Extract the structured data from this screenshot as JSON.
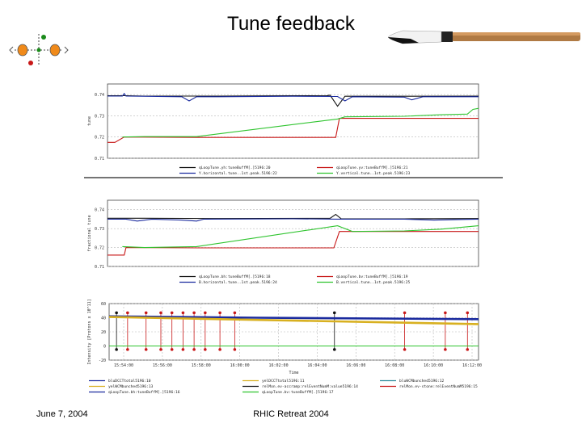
{
  "slide": {
    "title": "Tune feedback",
    "footer_left": "June 7, 2004",
    "footer_center": "RHIC Retreat 2004"
  },
  "colors": {
    "black": "#111111",
    "blue": "#1a2a9e",
    "red": "#c81818",
    "green": "#2fc42f",
    "yellow": "#d8b020",
    "teal": "#2a8a9a",
    "grid": "#b8b8b8"
  },
  "chart_data": [
    {
      "type": "line",
      "ylabel": "tune",
      "yticks": [
        "0.74",
        "0.73",
        "0.72",
        "0.71"
      ],
      "ylim": [
        0.71,
        0.745
      ],
      "legend": [
        "qLoopTune.yh:tuneBuffM[.]5196:20",
        "qLoopTune.yv:tuneBuffM[.]5196:21",
        "Y.horizontal.tune..1st.peak.5196:22",
        "Y.vertical.tune..1st.peak.5196:23"
      ],
      "series": [
        {
          "name": "qLoopTune.yh:tuneBuffM[.]5196:20",
          "color": "black",
          "points": [
            [
              0,
              0.7395
            ],
            [
              0.05,
              0.7395
            ],
            [
              0.1,
              0.7393
            ],
            [
              0.3,
              0.7393
            ],
            [
              0.5,
              0.7395
            ],
            [
              0.59,
              0.7394
            ],
            [
              0.6,
              0.7397
            ],
            [
              0.62,
              0.7345
            ],
            [
              0.64,
              0.7392
            ],
            [
              0.8,
              0.7392
            ],
            [
              1,
              0.7393
            ]
          ]
        },
        {
          "name": "Y.horizontal.tune..1st.peak.5196:22",
          "color": "blue",
          "points": [
            [
              0,
              0.7393
            ],
            [
              0.04,
              0.7393
            ],
            [
              0.045,
              0.7405
            ],
            [
              0.05,
              0.7393
            ],
            [
              0.2,
              0.739
            ],
            [
              0.22,
              0.737
            ],
            [
              0.24,
              0.739
            ],
            [
              0.3,
              0.739
            ],
            [
              0.5,
              0.7392
            ],
            [
              0.62,
              0.7391
            ],
            [
              0.64,
              0.737
            ],
            [
              0.66,
              0.739
            ],
            [
              0.8,
              0.7388
            ],
            [
              0.82,
              0.7375
            ],
            [
              0.85,
              0.739
            ],
            [
              1,
              0.739
            ]
          ]
        },
        {
          "name": "qLoopTune.yv:tuneBuffM[.]5196:21",
          "color": "red",
          "points": [
            [
              0,
              0.7175
            ],
            [
              0.02,
              0.7175
            ],
            [
              0.045,
              0.72
            ],
            [
              0.25,
              0.7198
            ],
            [
              0.6,
              0.7198
            ],
            [
              0.615,
              0.7198
            ],
            [
              0.625,
              0.7288
            ],
            [
              1,
              0.7288
            ]
          ]
        },
        {
          "name": "Y.vertical.tune..1st.peak.5196:23",
          "color": "green",
          "points": [
            [
              0.04,
              0.72
            ],
            [
              0.1,
              0.7202
            ],
            [
              0.24,
              0.7202
            ],
            [
              0.62,
              0.7285
            ],
            [
              0.64,
              0.7295
            ],
            [
              0.8,
              0.7298
            ],
            [
              0.9,
              0.7305
            ],
            [
              0.97,
              0.7308
            ],
            [
              0.985,
              0.733
            ],
            [
              1,
              0.7335
            ]
          ]
        }
      ]
    },
    {
      "type": "line",
      "ylabel": "fractional tune",
      "yticks": [
        "0.74",
        "0.73",
        "0.72",
        "0.71"
      ],
      "ylim": [
        0.71,
        0.745
      ],
      "legend": [
        "qLoopTune.bh:tuneBuffM[.]5196:18",
        "qLoopTune.bv:tuneBuffM[.]5196:19",
        "B.horizontal.tune..1st.peak.5196:24",
        "B.vertical.tune..1st.peak.5196:25"
      ],
      "series": [
        {
          "name": "qLoopTune.bh:tuneBuffM[.]5196:18",
          "color": "black",
          "points": [
            [
              0,
              0.7355
            ],
            [
              0.1,
              0.7355
            ],
            [
              0.3,
              0.7353
            ],
            [
              0.6,
              0.7355
            ],
            [
              0.615,
              0.7375
            ],
            [
              0.63,
              0.7352
            ],
            [
              0.8,
              0.7352
            ],
            [
              1,
              0.7353
            ]
          ]
        },
        {
          "name": "B.horizontal.tune..1st.peak.5196:24",
          "color": "blue",
          "points": [
            [
              0,
              0.735
            ],
            [
              0.05,
              0.735
            ],
            [
              0.08,
              0.734
            ],
            [
              0.12,
              0.735
            ],
            [
              0.2,
              0.7345
            ],
            [
              0.24,
              0.734
            ],
            [
              0.26,
              0.735
            ],
            [
              0.5,
              0.7352
            ],
            [
              0.62,
              0.735
            ],
            [
              0.65,
              0.735
            ],
            [
              0.8,
              0.735
            ],
            [
              0.88,
              0.7345
            ],
            [
              1,
              0.735
            ]
          ]
        },
        {
          "name": "qLoopTune.bv:tuneBuffM[.]5196:19",
          "color": "red",
          "points": [
            [
              0,
              0.716
            ],
            [
              0.045,
              0.716
            ],
            [
              0.05,
              0.72
            ],
            [
              0.25,
              0.7198
            ],
            [
              0.61,
              0.7198
            ],
            [
              0.625,
              0.7285
            ],
            [
              1,
              0.7285
            ]
          ]
        },
        {
          "name": "B.vertical.tune..1st.peak.5196:25",
          "color": "green",
          "points": [
            [
              0.04,
              0.7205
            ],
            [
              0.1,
              0.72
            ],
            [
              0.24,
              0.7205
            ],
            [
              0.62,
              0.7315
            ],
            [
              0.66,
              0.7285
            ],
            [
              0.8,
              0.7288
            ],
            [
              0.9,
              0.7297
            ],
            [
              1,
              0.7315
            ]
          ]
        }
      ]
    },
    {
      "type": "line",
      "ylabel": "Intensity [Protons x 10^11]",
      "xlabel": "Time",
      "yticks": [
        "60",
        "40",
        "20",
        "0",
        "-20"
      ],
      "ylim": [
        -20,
        60
      ],
      "xticks": [
        "15:54:00",
        "15:56:00",
        "15:58:00",
        "16:00:00",
        "16:02:00",
        "16:04:00",
        "16:06:00",
        "16:08:00",
        "16:10:00",
        "16:12:00"
      ],
      "legend": [
        "bluDCCTtotal5196:10",
        "yelDCCTtotal5196:11",
        "bluWCMbunched5196:12",
        "yelWCMbunched5196:13",
        "relMon.ev-accramp:relEventNumM:value5196:14",
        "relMon.ev-stone:relEventNumM5196:15",
        "qLoopTune.bh:tuneBuffM[.]5196:16",
        "qLoopTune.bv:tuneBuffM[.]5196:17"
      ],
      "series": [
        {
          "name": "bluDCCTtotal5196:10",
          "color": "blue",
          "points": [
            [
              0,
              42
            ],
            [
              0.4,
              40
            ],
            [
              1,
              38
            ]
          ]
        },
        {
          "name": "yelDCCTtotal5196:11",
          "color": "yellow",
          "points": [
            [
              0,
              41
            ],
            [
              0.3,
              38
            ],
            [
              1,
              31
            ]
          ]
        },
        {
          "name": "qLoopTune.bv:tuneBuffM[.]5196:17",
          "color": "green",
          "points": [
            [
              0,
              0
            ],
            [
              1,
              0
            ]
          ]
        }
      ],
      "red_events_x": [
        0.05,
        0.1,
        0.14,
        0.17,
        0.2,
        0.23,
        0.26,
        0.3,
        0.34,
        0.8,
        0.91,
        0.97
      ],
      "black_events_x": [
        0.02,
        0.61
      ],
      "event_top": 47,
      "event_bottom": -5
    }
  ]
}
